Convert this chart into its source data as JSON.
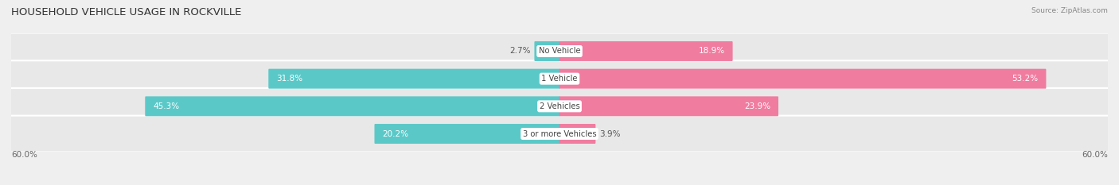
{
  "title": "HOUSEHOLD VEHICLE USAGE IN ROCKVILLE",
  "source": "Source: ZipAtlas.com",
  "categories": [
    "No Vehicle",
    "1 Vehicle",
    "2 Vehicles",
    "3 or more Vehicles"
  ],
  "owner_values": [
    2.7,
    31.8,
    45.3,
    20.2
  ],
  "renter_values": [
    18.9,
    53.2,
    23.9,
    3.9
  ],
  "max_val": 60.0,
  "owner_color": "#5bc8c8",
  "renter_color": "#f07ca0",
  "axis_label": "60.0%",
  "bg_color": "#efefef",
  "bar_bg_color": "#e0e0e0",
  "row_bg_color": "#e8e8e8",
  "title_fontsize": 9.5,
  "label_fontsize": 7.5,
  "category_fontsize": 7.2,
  "tick_fontsize": 7.5
}
